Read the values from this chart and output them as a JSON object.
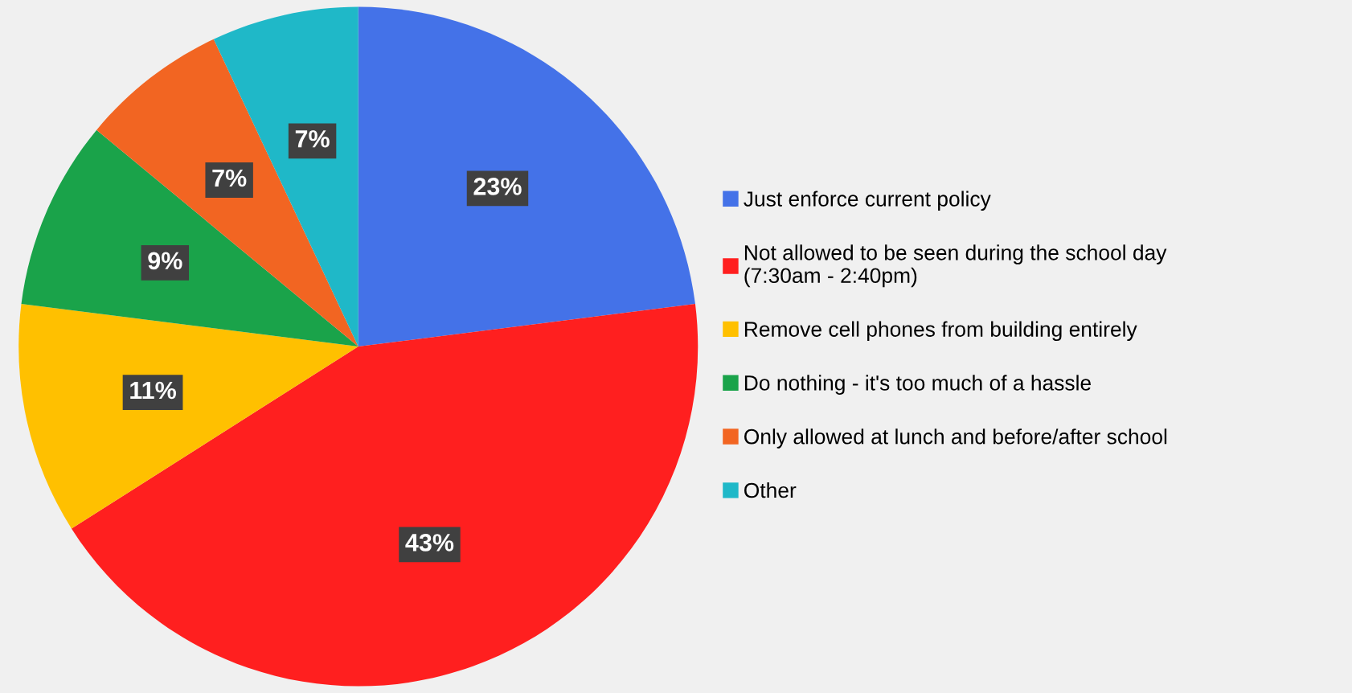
{
  "chart_data": {
    "type": "pie",
    "categories": [
      "Just enforce current policy",
      "Not allowed to be seen during the school day\n(7:30am - 2:40pm)",
      "Remove cell phones from building entirely",
      "Do nothing - it's too much of a hassle",
      "Only allowed at lunch and before/after school",
      "Other"
    ],
    "values": [
      23,
      43,
      11,
      9,
      7,
      7
    ],
    "colors": [
      "#4472e8",
      "#ff1f1f",
      "#ffc000",
      "#1aa34a",
      "#f26522",
      "#1fb8c8"
    ],
    "value_labels": [
      "23%",
      "43%",
      "11%",
      "9%",
      "7%",
      "7%"
    ],
    "legend": "right"
  }
}
